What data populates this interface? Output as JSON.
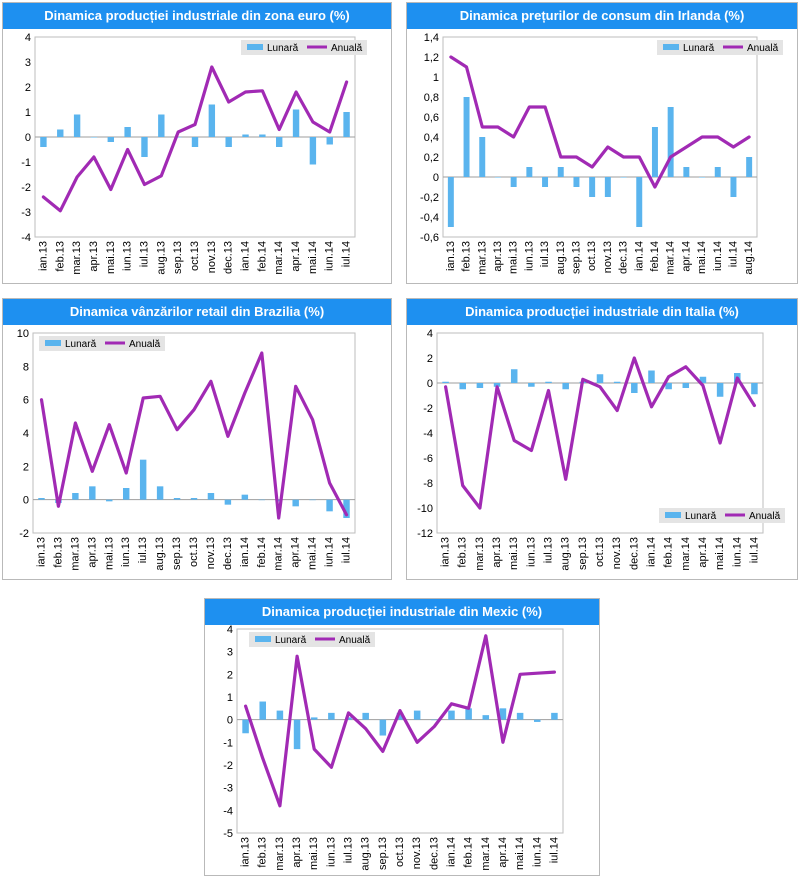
{
  "colors": {
    "monthly": "#5ab4ee",
    "annual": "#a12ab4",
    "title_bg": "#1e90f0",
    "title_text": "#ffffff"
  },
  "chart_data": [
    {
      "type": "bar+line",
      "title": "Dinamica producției industriale din zona euro (%)",
      "legend": [
        "Lunară",
        "Anuală"
      ],
      "legend_position": "top-right",
      "ylim": [
        -4,
        4
      ],
      "yticks": [
        "4",
        "3",
        "2",
        "1",
        "0",
        "-1",
        "-2",
        "-3",
        "-4"
      ],
      "categories": [
        "ian.13",
        "feb.13",
        "mar.13",
        "apr.13",
        "mai.13",
        "iun.13",
        "iul.13",
        "aug.13",
        "sep.13",
        "oct.13",
        "nov.13",
        "dec.13",
        "ian.14",
        "feb.14",
        "mar.14",
        "apr.14",
        "mai.14",
        "iun.14",
        "iul.14"
      ],
      "x_labels": [
        "ian.13",
        "feb.13",
        "mar.13",
        "apr.13",
        "mai.13",
        "iun.13",
        "iul.13",
        "aug.13",
        "sep.13",
        "oct.13",
        "nov.13",
        "dec.13",
        "ian.14",
        "feb.14",
        "mar.14",
        "apr.14",
        "mai.14",
        "iun.14",
        "iul.14"
      ],
      "series": [
        {
          "name": "Lunară",
          "kind": "bar",
          "values": [
            -0.4,
            0.3,
            0.9,
            0.0,
            -0.2,
            0.4,
            -0.8,
            0.9,
            0.0,
            -0.4,
            1.3,
            -0.4,
            0.1,
            0.1,
            -0.4,
            1.1,
            -1.1,
            -0.3,
            1.0
          ]
        },
        {
          "name": "Anuală",
          "kind": "line",
          "values": [
            -2.4,
            -2.95,
            -1.6,
            -0.8,
            -2.1,
            -0.5,
            -1.9,
            -1.55,
            0.2,
            0.5,
            2.8,
            1.4,
            1.8,
            1.85,
            0.3,
            1.8,
            0.6,
            0.2,
            2.2
          ]
        }
      ]
    },
    {
      "type": "bar+line",
      "title": "Dinamica prețurilor de consum din Irlanda (%)",
      "legend": [
        "Lunară",
        "Anuală"
      ],
      "legend_position": "top-right",
      "ylim": [
        -0.6,
        1.4
      ],
      "yticks": [
        "1,4",
        "1,2",
        "1",
        "0,8",
        "0,6",
        "0,4",
        "0,2",
        "0",
        "-0,2",
        "-0,4",
        "-0,6"
      ],
      "categories": [
        "ian.13",
        "feb.13",
        "mar.13",
        "apr.13",
        "mai.13",
        "iun.13",
        "iul.13",
        "aug.13",
        "sep.13",
        "oct.13",
        "nov.13",
        "dec.13",
        "ian.14",
        "feb.14",
        "mar.14",
        "apr.14",
        "mai.14",
        "iun.14",
        "iul.14",
        "aug.14"
      ],
      "x_labels": [
        "ian.13",
        "feb.13",
        "mar.13",
        "apr.13",
        "mai.13",
        "iun.13",
        "iul.13",
        "aug.13",
        "sep.13",
        "oct.13",
        "nov.13",
        "dec.13",
        "ian.14",
        "feb.14",
        "mar.14",
        "apr.14",
        "mai.14",
        "iun.14",
        "iul.14",
        "aug.14"
      ],
      "series": [
        {
          "name": "Lunară",
          "kind": "bar",
          "values": [
            -0.5,
            0.8,
            0.4,
            0.0,
            -0.1,
            0.1,
            -0.1,
            0.1,
            -0.1,
            -0.2,
            -0.2,
            0.0,
            -0.5,
            0.5,
            0.7,
            0.1,
            0.0,
            0.1,
            -0.2,
            0.2
          ]
        },
        {
          "name": "Anuală",
          "kind": "line",
          "values": [
            1.2,
            1.1,
            0.5,
            0.5,
            0.4,
            0.7,
            0.7,
            0.2,
            0.2,
            0.1,
            0.3,
            0.2,
            0.2,
            -0.1,
            0.2,
            0.3,
            0.4,
            0.4,
            0.3,
            0.4
          ]
        }
      ]
    },
    {
      "type": "bar+line",
      "title": "Dinamica vânzărilor retail din Brazilia (%)",
      "legend": [
        "Lunară",
        "Anuală"
      ],
      "legend_position": "top-left",
      "ylim": [
        -2,
        10
      ],
      "yticks": [
        "10",
        "8",
        "6",
        "4",
        "2",
        "0",
        "-2"
      ],
      "categories": [
        "ian.13",
        "feb.13",
        "mar.13",
        "apr.13",
        "mai.13",
        "iun.13",
        "iul.13",
        "aug.13",
        "sep.13",
        "oct.13",
        "nov.13",
        "dec.13",
        "ian.14",
        "feb.14",
        "mar.14",
        "apr.14",
        "mai.14",
        "iun.14",
        "iul.14"
      ],
      "x_labels": [
        "ian.13",
        "feb.13",
        "mar.13",
        "apr.13",
        "mai.13",
        "iun.13",
        "iul.13",
        "aug.13",
        "sep.13",
        "oct.13",
        "nov.13",
        "dec.13",
        "ian.14",
        "feb.14",
        "mar.14",
        "apr.14",
        "mai.14",
        "iun.14",
        "iul.14"
      ],
      "series": [
        {
          "name": "Lunară",
          "kind": "bar",
          "values": [
            0.1,
            -0.2,
            0.4,
            0.8,
            -0.1,
            0.7,
            2.4,
            0.8,
            0.1,
            0.1,
            0.4,
            -0.3,
            0.3,
            0.0,
            -0.1,
            -0.4,
            0.0,
            -0.7,
            -1.1
          ]
        },
        {
          "name": "Anuală",
          "kind": "line",
          "values": [
            6.0,
            -0.4,
            4.6,
            1.7,
            4.5,
            1.6,
            6.1,
            6.2,
            4.2,
            5.4,
            7.1,
            3.8,
            6.4,
            8.8,
            -1.1,
            6.8,
            4.8,
            1.0,
            -0.9
          ]
        }
      ]
    },
    {
      "type": "bar+line",
      "title": "Dinamica producției industriale din Italia (%)",
      "legend": [
        "Lunară",
        "Anuală"
      ],
      "legend_position": "bottom-right",
      "ylim": [
        -12,
        4
      ],
      "yticks": [
        "4",
        "2",
        "0",
        "-2",
        "-4",
        "-6",
        "-8",
        "-10",
        "-12"
      ],
      "categories": [
        "ian.13",
        "feb.13",
        "mar.13",
        "apr.13",
        "mai.13",
        "iun.13",
        "iul.13",
        "aug.13",
        "sep.13",
        "oct.13",
        "nov.13",
        "dec.13",
        "ian.14",
        "feb.14",
        "mar.14",
        "apr.14",
        "mai.14",
        "iun.14",
        "iul.14"
      ],
      "x_labels": [
        "ian.13",
        "feb.13",
        "mar.13",
        "apr.13",
        "mai.13",
        "iun.13",
        "iul.13",
        "aug.13",
        "sep.13",
        "oct.13",
        "nov.13",
        "dec.13",
        "ian.14",
        "feb.14",
        "mar.14",
        "apr.14",
        "mai.14",
        "iun.14",
        "iul.14"
      ],
      "series": [
        {
          "name": "Lunară",
          "kind": "bar",
          "values": [
            0.1,
            -0.5,
            -0.4,
            -0.3,
            1.1,
            -0.3,
            0.1,
            -0.5,
            0.1,
            0.7,
            0.1,
            -0.8,
            1.0,
            -0.5,
            -0.4,
            0.5,
            -1.1,
            0.8,
            -0.9
          ]
        },
        {
          "name": "Anuală",
          "kind": "line",
          "values": [
            -0.3,
            -8.2,
            -10.0,
            -0.3,
            -4.6,
            -5.4,
            -0.6,
            -7.7,
            0.3,
            -0.3,
            -2.2,
            2.0,
            -1.9,
            0.5,
            1.3,
            -0.2,
            -4.8,
            0.4,
            -1.8
          ]
        }
      ]
    },
    {
      "type": "bar+line",
      "title": "Dinamica producției industriale din Mexic (%)",
      "legend": [
        "Lunară",
        "Anuală"
      ],
      "legend_position": "top-left",
      "ylim": [
        -5,
        4
      ],
      "yticks": [
        "4",
        "3",
        "2",
        "1",
        "0",
        "-1",
        "-2",
        "-3",
        "-4",
        "-5"
      ],
      "categories": [
        "ian.13",
        "feb.13",
        "mar.13",
        "apr.13",
        "mai.13",
        "iun.13",
        "iul.13",
        "aug.13",
        "sep.13",
        "oct.13",
        "nov.13",
        "dec.13",
        "ian.14",
        "feb.14",
        "mar.14",
        "apr.14",
        "mai.14",
        "iun.14",
        "iul.14"
      ],
      "x_labels": [
        "ian.13",
        "feb.13",
        "mar.13",
        "apr.13",
        "mai.13",
        "iun.13",
        "iul.13",
        "aug.13",
        "sep.13",
        "oct.13",
        "nov.13",
        "dec.13",
        "ian.14",
        "feb.14",
        "mar.14",
        "apr.14",
        "mai.14",
        "iun.14",
        "iul.14"
      ],
      "series": [
        {
          "name": "Lunară",
          "kind": "bar",
          "values": [
            -0.6,
            0.8,
            0.4,
            -1.3,
            0.1,
            0.3,
            0.1,
            0.3,
            -0.7,
            0.3,
            0.4,
            0.0,
            0.4,
            0.5,
            0.2,
            0.5,
            0.3,
            -0.1,
            0.3
          ]
        },
        {
          "name": "Anuală",
          "kind": "line",
          "values": [
            0.6,
            -1.7,
            -3.8,
            2.8,
            -1.3,
            -2.1,
            0.3,
            -0.4,
            -1.4,
            0.4,
            -1.0,
            -0.3,
            0.7,
            0.5,
            3.7,
            -1.0,
            2.0,
            2.05,
            2.1
          ]
        }
      ]
    }
  ]
}
